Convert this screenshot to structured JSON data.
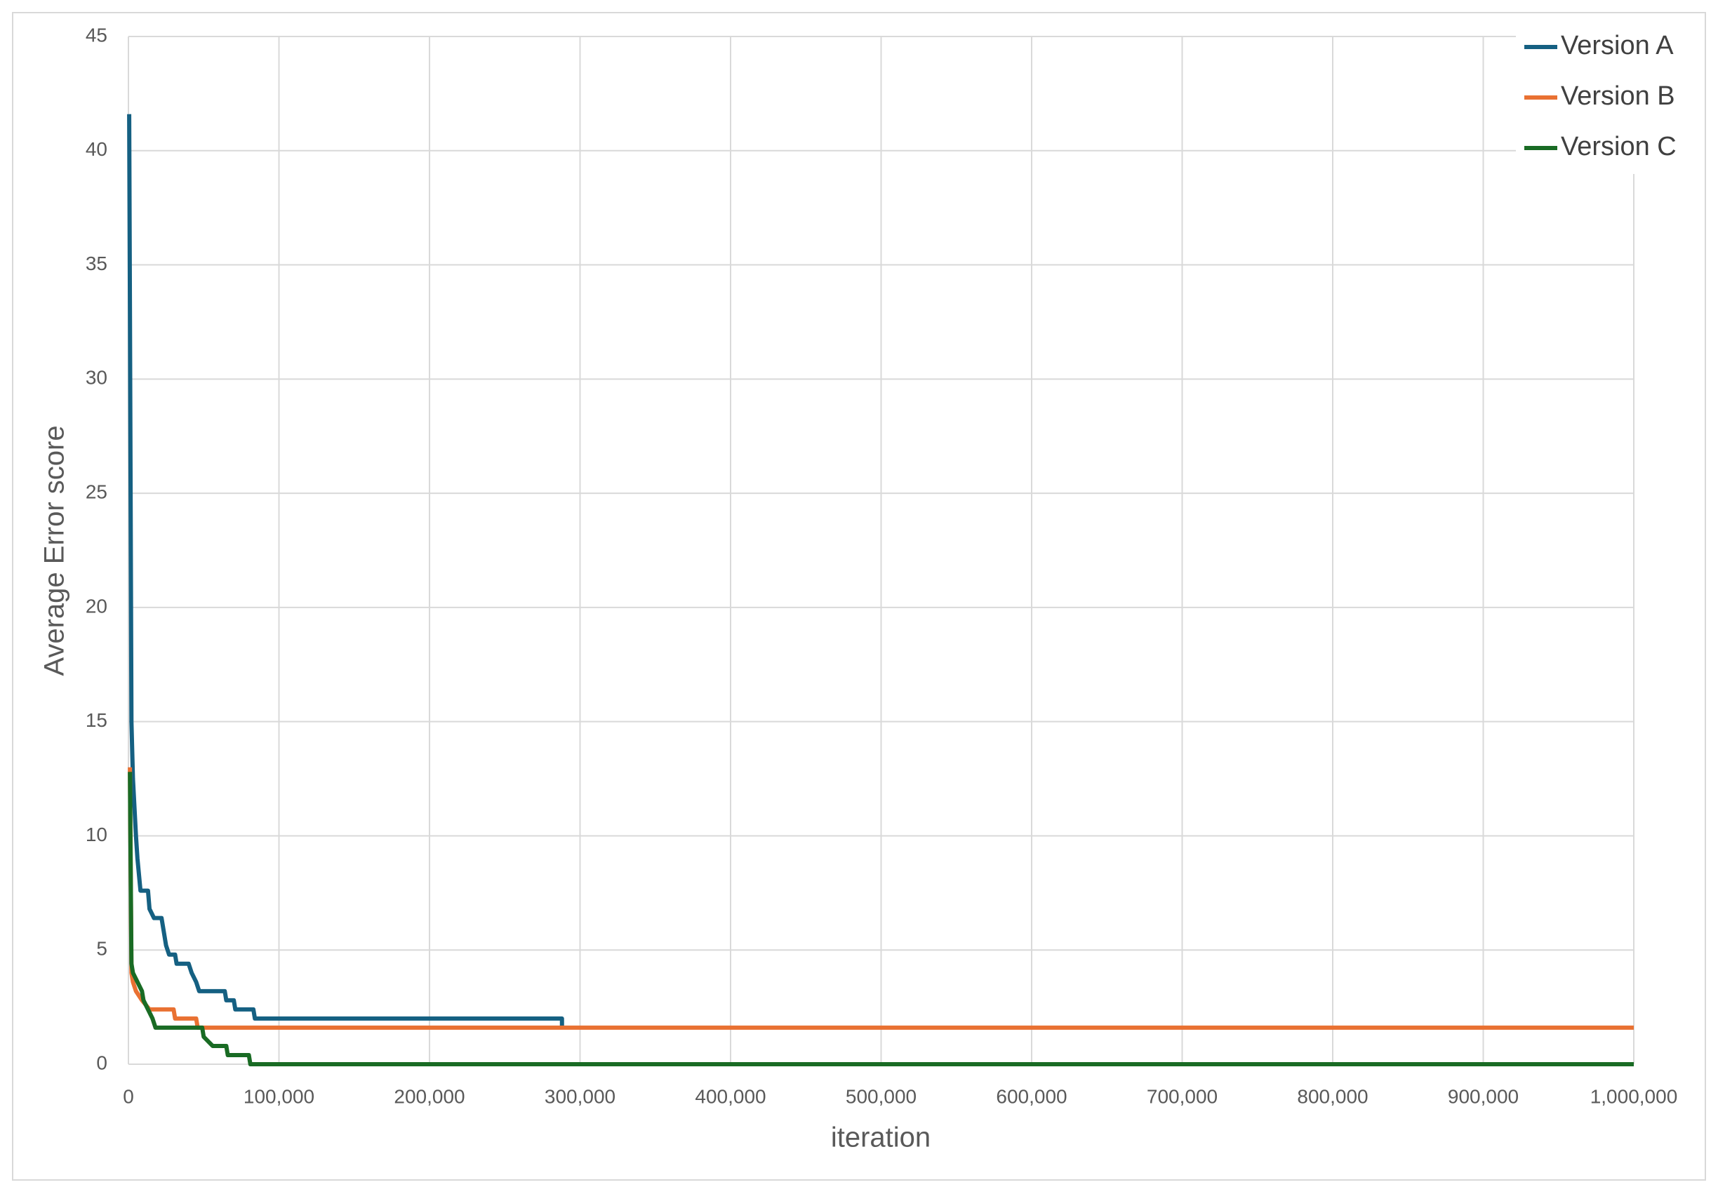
{
  "chart_data": {
    "type": "line",
    "x_label": "iteration",
    "y_label": "Average Error score",
    "xlim": [
      0,
      1000000
    ],
    "xticks": [
      0,
      {
        "value": 100000,
        "label": "100,000"
      },
      {
        "value": 200000,
        "label": "200,000"
      },
      {
        "value": 300000,
        "label": "300,000"
      },
      {
        "value": 400000,
        "label": "400,000"
      },
      {
        "value": 500000,
        "label": "500,000"
      },
      {
        "value": 600000,
        "label": "600,000"
      },
      {
        "value": 700000,
        "label": "700,000"
      },
      {
        "value": 800000,
        "label": "800,000"
      },
      {
        "value": 900000,
        "label": "900,000"
      },
      {
        "value": 1000000,
        "label": "1,000,000"
      }
    ],
    "ylim": [
      0,
      45
    ],
    "yticks": [
      0,
      5,
      10,
      15,
      20,
      25,
      30,
      35,
      40,
      45
    ],
    "grid": true,
    "legend": "top-right",
    "series": [
      {
        "name": "Version A",
        "color": "#156082",
        "x": [
          500,
          1000,
          2000,
          3000,
          5000,
          6000,
          8000,
          13000,
          14000,
          17000,
          22000,
          24000,
          25000,
          27000,
          31000,
          32000,
          40000,
          42000,
          45000,
          47000,
          64000,
          65000,
          70000,
          71000,
          83000,
          84000,
          288000,
          288000
        ],
        "values": [
          41.6,
          33,
          15,
          12.5,
          10,
          9,
          7.6,
          7.6,
          6.8,
          6.4,
          6.4,
          5.6,
          5.2,
          4.8,
          4.8,
          4.4,
          4.4,
          4.0,
          3.6,
          3.2,
          3.2,
          2.8,
          2.8,
          2.4,
          2.4,
          2.0,
          2.0,
          1.6
        ]
      },
      {
        "name": "Version B",
        "color": "#e97132",
        "x": [
          1000,
          2000,
          3000,
          5000,
          9000,
          14000,
          30000,
          31000,
          45000,
          46000,
          1000000
        ],
        "values": [
          13,
          4.0,
          3.6,
          3.2,
          2.8,
          2.4,
          2.4,
          2.0,
          2.0,
          1.6,
          1.6
        ]
      },
      {
        "name": "Version C",
        "color": "#196b24",
        "x": [
          1000,
          2000,
          3000,
          6000,
          9000,
          10000,
          13000,
          16000,
          18000,
          49000,
          50000,
          56000,
          65000,
          66000,
          80000,
          81000,
          1000000
        ],
        "values": [
          12.8,
          4.4,
          4.0,
          3.6,
          3.2,
          2.8,
          2.4,
          2.0,
          1.6,
          1.6,
          1.2,
          0.8,
          0.8,
          0.4,
          0.4,
          0,
          0
        ]
      }
    ]
  }
}
